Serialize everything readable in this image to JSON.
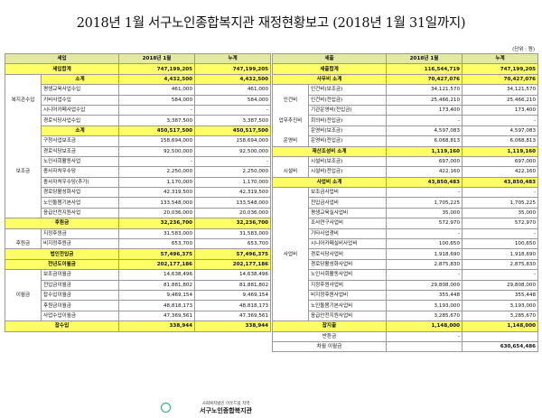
{
  "title": "2018년 1월 서구노인종합복지관 재정현황보고 (2018년 1월 31일까지)",
  "unit": "(단위 : 원)",
  "footer": {
    "small": "사회복지법인 이웃드림 지역",
    "name": "서구노인종합복지관"
  },
  "left": {
    "headers": [
      "세입",
      "2018년 1월",
      "누계"
    ],
    "total": {
      "label": "세입합계",
      "v1": "747,199,205",
      "v2": "747,199,205"
    },
    "rows": [
      {
        "cat": "",
        "item": "소계",
        "v1": "4,432,500",
        "v2": "4,432,500",
        "sub": true
      },
      {
        "cat": "",
        "item": "평생교육사업수입",
        "v1": "461,000",
        "v2": "461,000"
      },
      {
        "cat": "복지관수입",
        "item": "키비사업수입",
        "v1": "584,000",
        "v2": "584,000"
      },
      {
        "cat": "",
        "item": "시니어카페사업수입",
        "v1": "-",
        "v2": "-"
      },
      {
        "cat": "",
        "item": "경로식당사업수입",
        "v1": "3,387,500",
        "v2": "3,387,500"
      },
      {
        "cat": "",
        "item": "소계",
        "v1": "450,517,500",
        "v2": "450,517,500",
        "sub": true
      },
      {
        "cat": "",
        "item": "구청사업보조금",
        "v1": "158,694,000",
        "v2": "158,694,000"
      },
      {
        "cat": "",
        "item": "경로식당보조금",
        "v1": "92,500,000",
        "v2": "92,500,000"
      },
      {
        "cat": "",
        "item": "노인사회활동사업",
        "v1": "-",
        "v2": "-"
      },
      {
        "cat": "보조금",
        "item": "종사자처우수당",
        "v1": "2,250,000",
        "v2": "2,250,000"
      },
      {
        "cat": "",
        "item": "종사자처우수당(추가)",
        "v1": "1,170,000",
        "v2": "1,170,000"
      },
      {
        "cat": "",
        "item": "경로당활성화사업",
        "v1": "42,319,500",
        "v2": "42,319,500"
      },
      {
        "cat": "",
        "item": "노인돌봄기본사업",
        "v1": "133,548,000",
        "v2": "133,548,000"
      },
      {
        "cat": "",
        "item": "응급안전지원사업",
        "v1": "20,036,000",
        "v2": "20,036,000"
      },
      {
        "cat": "후원금",
        "item": "",
        "v1": "32,236,700",
        "v2": "32,236,700",
        "catrow": true
      },
      {
        "cat": "",
        "item": "지정후원금",
        "v1": "31,583,000",
        "v2": "31,583,000"
      },
      {
        "cat": "후원금",
        "item": "비지정후원금",
        "v1": "653,700",
        "v2": "653,700"
      },
      {
        "cat": "법인전입금",
        "item": "",
        "v1": "57,496,375",
        "v2": "57,496,375",
        "catrow": true
      },
      {
        "cat": "전년도이월금",
        "item": "",
        "v1": "202,177,186",
        "v2": "202,177,186",
        "catrow": true
      },
      {
        "cat": "",
        "item": "보조금이월금",
        "v1": "14,638,496",
        "v2": "14,638,496"
      },
      {
        "cat": "",
        "item": "전입금이월금",
        "v1": "81,881,802",
        "v2": "81,881,802"
      },
      {
        "cat": "이월금",
        "item": "잡수입이월금",
        "v1": "9,469,154",
        "v2": "9,469,154"
      },
      {
        "cat": "",
        "item": "후원금이월금",
        "v1": "48,818,173",
        "v2": "48,818,173"
      },
      {
        "cat": "",
        "item": "사업수입이월금",
        "v1": "47,369,561",
        "v2": "47,369,561"
      },
      {
        "cat": "잡수입",
        "item": "",
        "v1": "338,944",
        "v2": "338,944",
        "catrow": true
      }
    ]
  },
  "right": {
    "headers": [
      "세출",
      "2018년 1월",
      "누계"
    ],
    "total": {
      "label": "세출합계",
      "v1": "116,544,719",
      "v2": "747,199,205"
    },
    "rows": [
      {
        "c1": "사무비 소계",
        "c2": "",
        "v1": "70,427,076",
        "v2": "70,427,076",
        "sub": true
      },
      {
        "c1": "",
        "c2": "인건비(보조금)",
        "v1": "34,121,570",
        "v2": "34,121,570"
      },
      {
        "c1": "인건비",
        "c2": "인건비(전입금)",
        "v1": "25,466,210",
        "v2": "25,466,210"
      },
      {
        "c1": "",
        "c2": "기관운영비(전입금)",
        "v1": "173,400",
        "v2": "173,400"
      },
      {
        "c1": "업무추진비",
        "c2": "회의비(전입금)",
        "v1": "-",
        "v2": "-"
      },
      {
        "c1": "",
        "c2": "운영비(보조금)",
        "v1": "4,597,083",
        "v2": "4,597,083"
      },
      {
        "c1": "운영비",
        "c2": "운영비(전입금)",
        "v1": "6,068,813",
        "v2": "6,068,813"
      },
      {
        "c1": "재산조성비 소계",
        "c2": "",
        "v1": "1,119,160",
        "v2": "1,119,160",
        "sub": true
      },
      {
        "c1": "",
        "c2": "시설비(보조금)",
        "v1": "697,000",
        "v2": "697,000"
      },
      {
        "c1": "시설비",
        "c2": "시설비(전입금)",
        "v1": "422,160",
        "v2": "422,160"
      },
      {
        "c1": "사업비 소계",
        "c2": "",
        "v1": "43,850,483",
        "v2": "43,850,483",
        "sub": true
      },
      {
        "c1": "",
        "c2": "보조금사업비",
        "v1": "-",
        "v2": "-"
      },
      {
        "c1": "",
        "c2": "전입금사업비",
        "v1": "1,705,225",
        "v2": "1,705,225"
      },
      {
        "c1": "",
        "c2": "평생교육실사업비",
        "v1": "35,000",
        "v2": "35,000"
      },
      {
        "c1": "",
        "c2": "조사연구사업비",
        "v1": "572,970",
        "v2": "572,970"
      },
      {
        "c1": "",
        "c2": "기타사업경비",
        "v1": "-",
        "v2": "-"
      },
      {
        "c1": "",
        "c2": "시니어카페실비사업비",
        "v1": "100,650",
        "v2": "100,650"
      },
      {
        "c1": "사업비",
        "c2": "경로식당사업비",
        "v1": "1,918,690",
        "v2": "1,918,690"
      },
      {
        "c1": "",
        "c2": "경로당활성화사업비",
        "v1": "2,875,830",
        "v2": "2,875,830"
      },
      {
        "c1": "",
        "c2": "노인사회활동사업비",
        "v1": "-",
        "v2": "-"
      },
      {
        "c1": "",
        "c2": "지정후원사업비",
        "v1": "29,808,000",
        "v2": "29,808,000"
      },
      {
        "c1": "",
        "c2": "비지정후원사업비",
        "v1": "355,448",
        "v2": "355,448"
      },
      {
        "c1": "",
        "c2": "노인돌봄기본사업비",
        "v1": "3,193,000",
        "v2": "3,193,000"
      },
      {
        "c1": "",
        "c2": "응급안전지원사업비",
        "v1": "3,285,670",
        "v2": "3,285,670"
      },
      {
        "c1": "잡지출",
        "c2": "",
        "v1": "1,148,000",
        "v2": "1,148,000",
        "sub": true
      },
      {
        "c1": "반환금",
        "c2": "",
        "v1": "-",
        "v2": "",
        "plain": true
      },
      {
        "c1": "차월 이월금",
        "c2": "",
        "v1": "",
        "v2": "630,654,486",
        "plain": true
      }
    ]
  }
}
